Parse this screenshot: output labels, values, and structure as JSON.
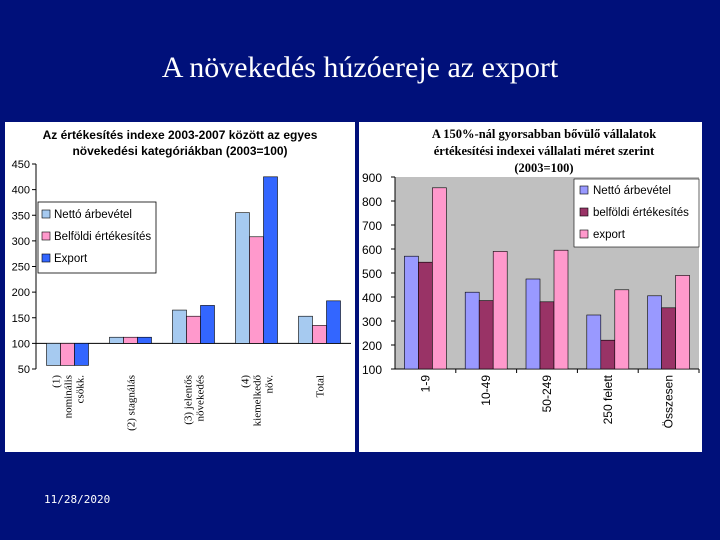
{
  "slide": {
    "title": "A növekedés húzóereje az export",
    "date": "11/28/2020"
  },
  "colors": {
    "background": "#00107a",
    "netto": "#a6caf0",
    "belfoldi_left": "#ff99cc",
    "export_left": "#3366ff",
    "netto_right": "#9999ff",
    "belfoldi_right": "#993366",
    "export_right": "#ff99cc",
    "plot_area_right": "#c0c0c0"
  },
  "chart_data": [
    {
      "type": "bar",
      "title_lines": [
        "Az értékesítés indexe 2003-2007 között az egyes",
        "növekedési kategóriákban (2003=100)"
      ],
      "categories": [
        [
          "(1)",
          "nominális",
          "csökk."
        ],
        [
          "(2) stagnálás"
        ],
        [
          "(3) jelentős",
          "növekedés"
        ],
        [
          "(4)",
          "kiemelkedő",
          "növ."
        ],
        [
          "Total"
        ]
      ],
      "series": [
        {
          "name": "Nettó árbevétel",
          "values": [
            57,
            112,
            165,
            355,
            153
          ]
        },
        {
          "name": "Belföldi értékesítés",
          "values": [
            57,
            112,
            153,
            308,
            135
          ]
        },
        {
          "name": "Export",
          "values": [
            57,
            112,
            174,
            425,
            183
          ]
        }
      ],
      "ylim": [
        50,
        450
      ],
      "yticks": [
        50,
        100,
        150,
        200,
        250,
        300,
        350,
        400,
        450
      ],
      "baseline": 100,
      "grid": false,
      "legend_position": "left"
    },
    {
      "type": "bar",
      "title_lines": [
        "A 150%-nál gyorsabban bővülő vállalatok",
        "értékesítési indexei vállalati méret szerint",
        "(2003=100)"
      ],
      "categories": [
        "1-9",
        "10-49",
        "50-249",
        "250 felett",
        "Összesen"
      ],
      "series": [
        {
          "name": "Nettó árbevétel",
          "values": [
            570,
            420,
            475,
            325,
            405
          ]
        },
        {
          "name": "belföldi értékesítés",
          "values": [
            545,
            385,
            380,
            220,
            355
          ]
        },
        {
          "name": "export",
          "values": [
            855,
            590,
            595,
            430,
            490
          ]
        }
      ],
      "ylim": [
        100,
        900
      ],
      "yticks": [
        100,
        200,
        300,
        400,
        500,
        600,
        700,
        800,
        900
      ],
      "grid": false,
      "legend_position": "top-right"
    }
  ]
}
